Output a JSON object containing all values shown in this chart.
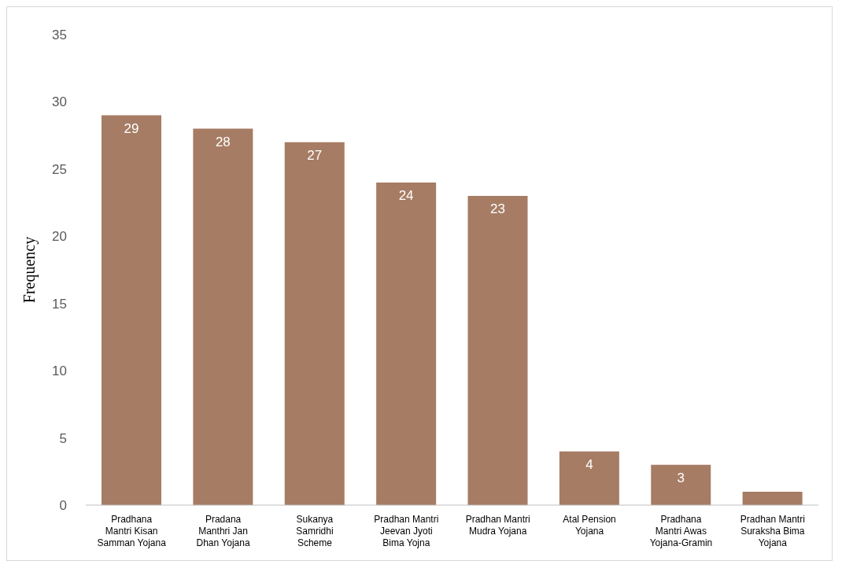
{
  "chart_data": {
    "type": "bar",
    "ylabel": "Frequency",
    "categories": [
      "Pradhana Mantri Kisan Samman Yojana",
      "Pradana Manthri Jan Dhan Yojana",
      "Sukanya Samridhi Scheme",
      "Pradhan Mantri Jeevan Jyoti Bima Yojna",
      "Pradhan Mantri Mudra Yojana",
      "Atal Pension Yojana",
      "Pradhana Mantri Awas Yojana-Gramin",
      "Pradhan Mantri Suraksha Bima Yojana"
    ],
    "values": [
      29,
      28,
      27,
      24,
      23,
      4,
      3,
      1
    ],
    "value_labels": [
      "29",
      "28",
      "27",
      "24",
      "23",
      "4",
      "3",
      null
    ],
    "color": "#a67c64",
    "ylim": [
      0,
      35
    ],
    "yticks": [
      0,
      5,
      10,
      15,
      20,
      25,
      30,
      35
    ],
    "grid": false,
    "legend": false
  }
}
